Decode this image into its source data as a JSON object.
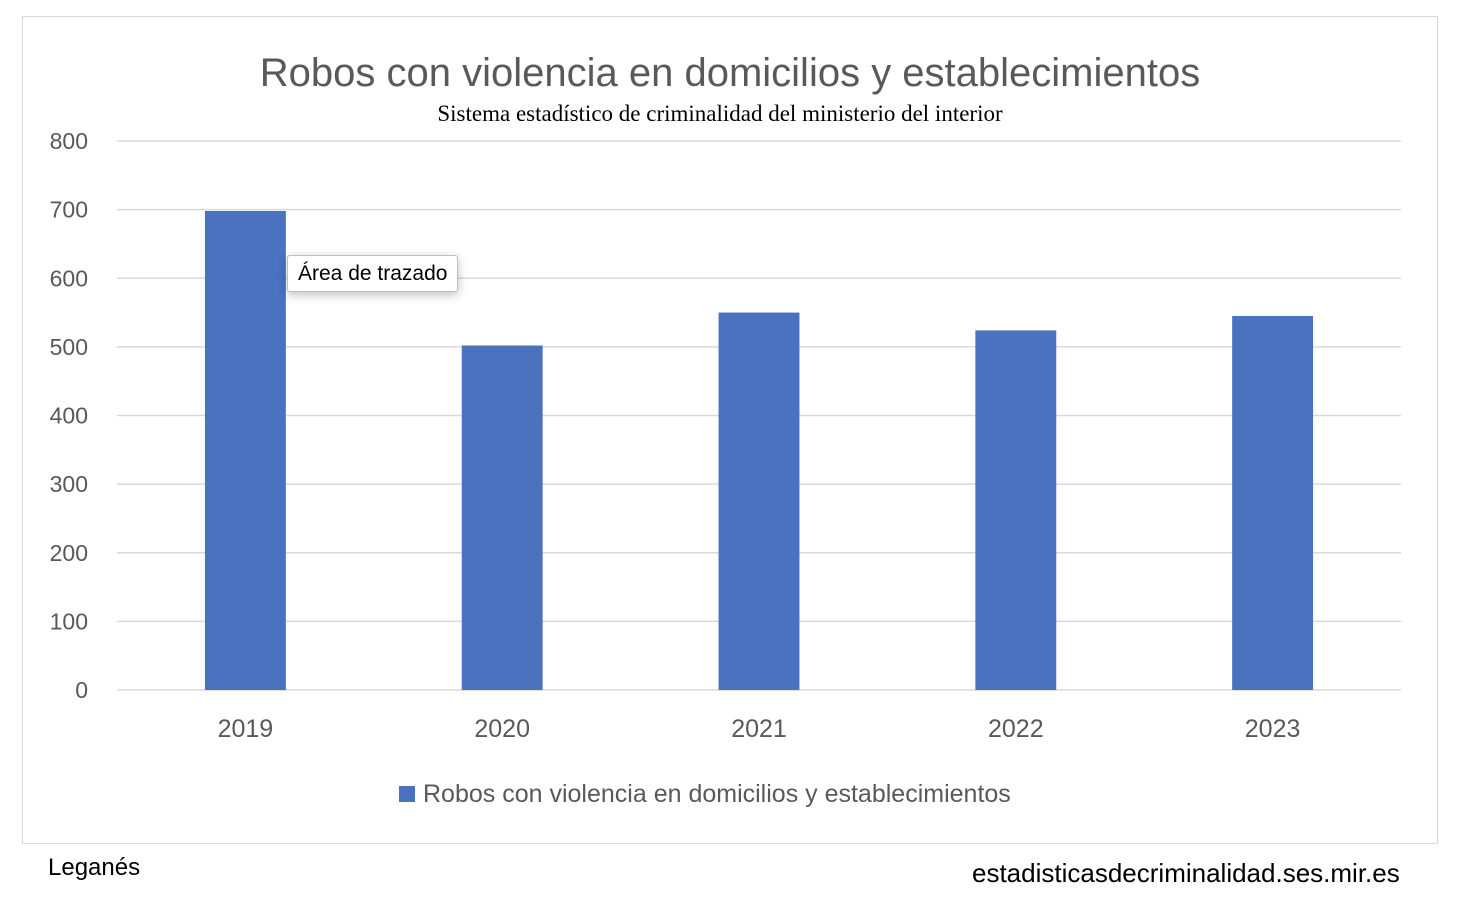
{
  "chart_data": {
    "type": "bar",
    "title": "Robos con violencia en domicilios y establecimientos",
    "subtitle": "Sistema estadístico de criminalidad del ministerio del interior",
    "categories": [
      "2019",
      "2020",
      "2021",
      "2022",
      "2023"
    ],
    "series": [
      {
        "name": "Robos con violencia en domicilios y establecimientos",
        "values": [
          698,
          502,
          550,
          524,
          545
        ]
      }
    ],
    "ylim": [
      0,
      800
    ],
    "yticks": [
      0,
      100,
      200,
      300,
      400,
      500,
      600,
      700,
      800
    ],
    "ylabel": "",
    "xlabel": "",
    "grid": true,
    "legend": "bottom",
    "bar_color": "#4a72bf"
  },
  "tooltip": {
    "text": "Área de trazado"
  },
  "footer": {
    "left": "Leganés",
    "right": "estadisticasdecriminalidad.ses.mir.es"
  }
}
